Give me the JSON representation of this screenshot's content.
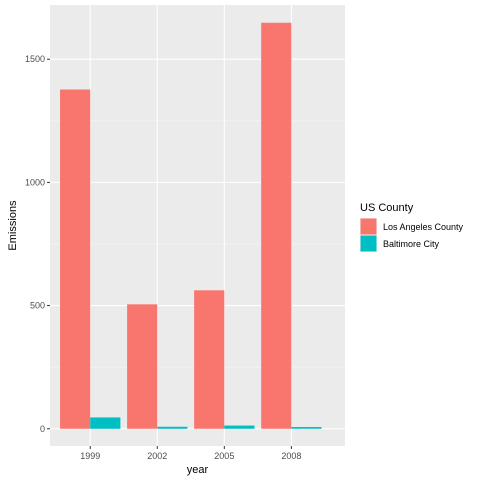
{
  "chart_data": {
    "type": "bar",
    "xlabel": "year",
    "ylabel": "Emissions",
    "categories": [
      "1999",
      "2002",
      "2005",
      "2008"
    ],
    "ylim": [
      -70,
      1720
    ],
    "yticks": [
      0,
      500,
      1000,
      1500
    ],
    "grid": true,
    "legend_placement": "right",
    "legend_title": "US County",
    "series": [
      {
        "name": "Los Angeles County",
        "color": "#F8766D",
        "values": [
          1377,
          505,
          562,
          1648
        ]
      },
      {
        "name": "Baltimore City",
        "color": "#00BFC4",
        "values": [
          46,
          8,
          13,
          7
        ]
      }
    ]
  }
}
